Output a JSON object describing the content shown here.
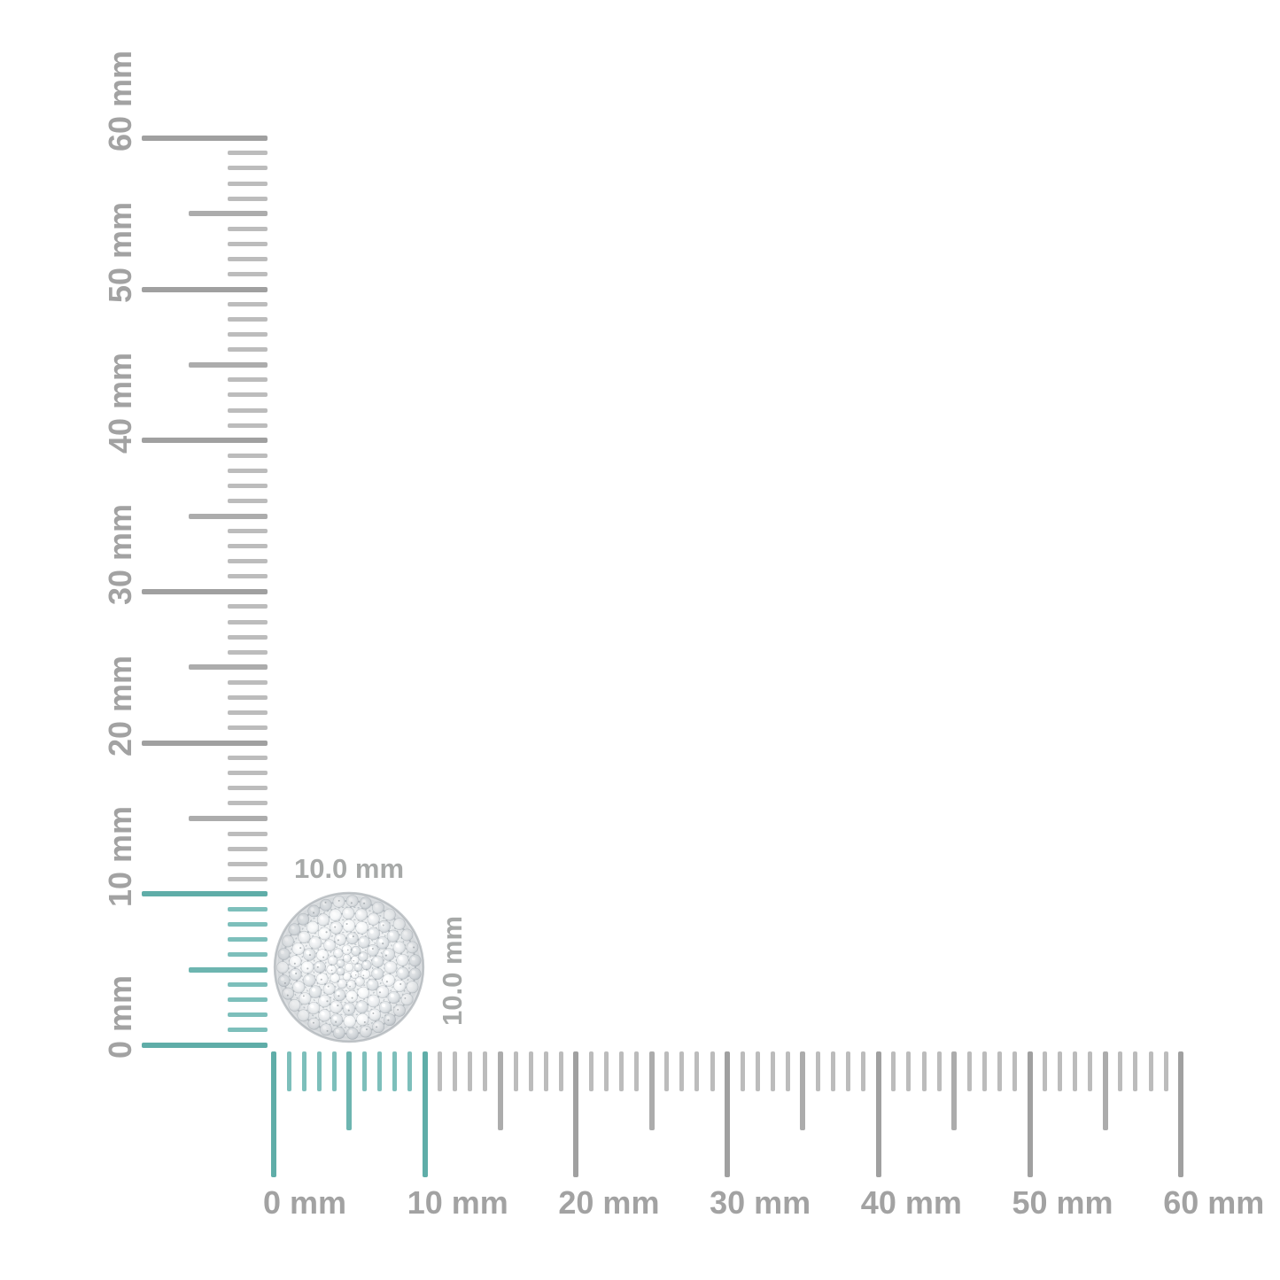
{
  "page": {
    "background": "#ffffff",
    "description": "Jewelry size reference diagram with corner ruler"
  },
  "rulers": {
    "unit": "mm",
    "min_mm": 0,
    "max_mm": 60,
    "label_step_mm": 10,
    "highlight_range_mm": [
      0,
      10
    ],
    "vertical_labels": [
      "0 mm",
      "10 mm",
      "20 mm",
      "30 mm",
      "40 mm",
      "50 mm",
      "60 mm"
    ],
    "horizontal_labels": [
      "0 mm",
      "10 mm",
      "20 mm",
      "30 mm",
      "40 mm",
      "50 mm",
      "60 mm"
    ],
    "colors": {
      "tick_gray_major": "#a0a0a0",
      "tick_gray_half": "#acacac",
      "tick_gray_minor": "#bcbcbc",
      "tick_teal_major": "#5fada8",
      "tick_teal_half": "#6db5b0",
      "tick_teal_minor": "#7dbfbb",
      "label_color": "#a2a2a2"
    }
  },
  "item": {
    "description": "round pave diamond cluster disc",
    "width_label": "10.0 mm",
    "height_label": "10.0 mm",
    "label_color": "#a7a9a8",
    "metal_base_color": "#eef0f2",
    "metal_rim_color": "#c6cacd",
    "stone_edge_color": "#8e969d",
    "groove_color": "#b9bfc4"
  }
}
